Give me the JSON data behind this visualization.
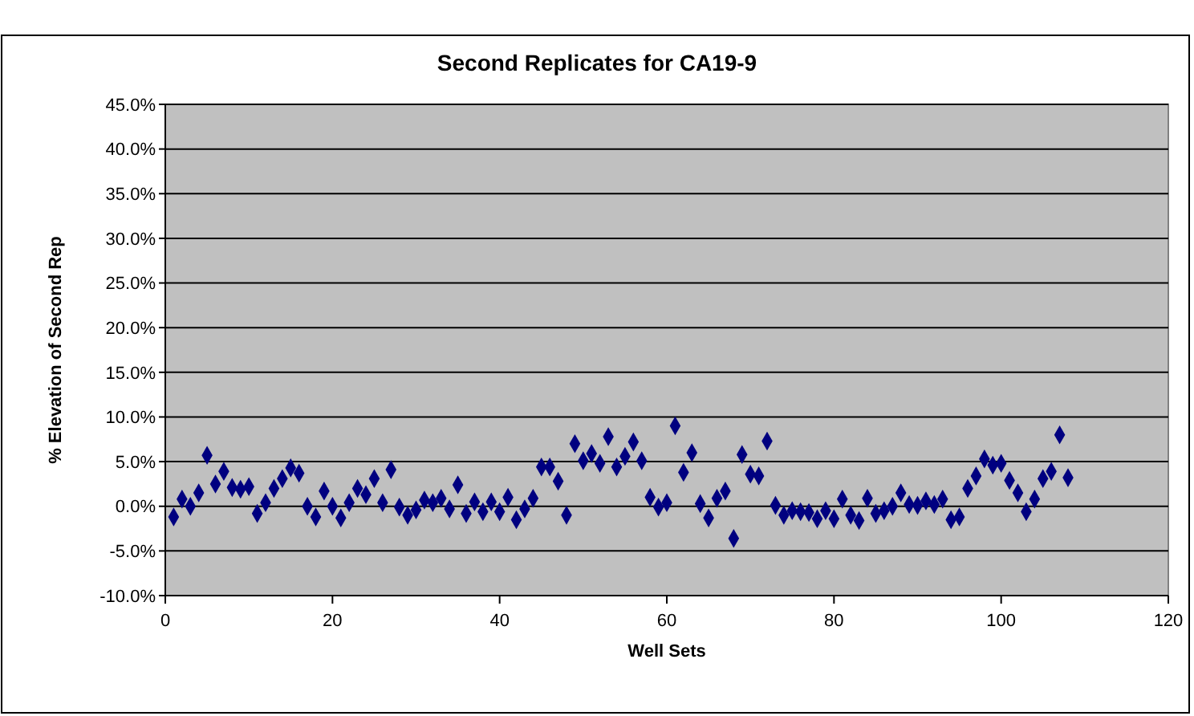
{
  "chart_data": {
    "type": "scatter",
    "title": "Second Replicates for CA19-9",
    "xlabel": "Well Sets",
    "ylabel": "% Elevation of Second Rep",
    "x": [
      1,
      2,
      3,
      4,
      5,
      6,
      7,
      8,
      9,
      10,
      11,
      12,
      13,
      14,
      15,
      16,
      17,
      18,
      19,
      20,
      21,
      22,
      23,
      24,
      25,
      26,
      27,
      28,
      29,
      30,
      31,
      32,
      33,
      34,
      35,
      36,
      37,
      38,
      39,
      40,
      41,
      42,
      43,
      44,
      45,
      46,
      47,
      48,
      49,
      50,
      51,
      52,
      53,
      54,
      55,
      56,
      57,
      58,
      59,
      60,
      61,
      62,
      63,
      64,
      65,
      66,
      67,
      68,
      69,
      70,
      71,
      72,
      73,
      74,
      75,
      76,
      77,
      78,
      79,
      80,
      81,
      82,
      83,
      84,
      85,
      86,
      87,
      88,
      89,
      90,
      91,
      92,
      93,
      94,
      95,
      96,
      97,
      98,
      99,
      100,
      101,
      102,
      103,
      104,
      105,
      106,
      107,
      108
    ],
    "series": [
      {
        "color": "#000080",
        "values": [
          -1.2,
          0.8,
          0,
          1.5,
          5.7,
          2.5,
          3.9,
          2.1,
          1.9,
          2.2,
          -0.8,
          0.4,
          2.0,
          3.1,
          4.3,
          3.7,
          0,
          -1.2,
          1.7,
          0,
          -1.3,
          0.4,
          2.0,
          1.3,
          3.1,
          0.4,
          4.1,
          -0.1,
          -1.0,
          -0.4,
          0.7,
          0.4,
          0.9,
          -0.3,
          2.4,
          -0.8,
          0.5,
          -0.6,
          0.5,
          -0.6,
          1.0,
          -1.5,
          -0.3,
          0.9,
          4.4,
          4.4,
          2.8,
          -1.0,
          7.0,
          5.1,
          5.9,
          4.8,
          7.8,
          4.4,
          5.6,
          7.2,
          5.1,
          1.0,
          -0.1,
          0.4,
          9.0,
          3.8,
          6.0,
          0.3,
          -1.3,
          0.9,
          1.7,
          -3.6,
          5.8,
          3.6,
          3.4,
          7.3,
          0.1,
          -1.0,
          -0.5,
          -0.6,
          -0.7,
          -1.4,
          -0.5,
          -1.4,
          0.8,
          -1.0,
          -1.6,
          0.9,
          -0.8,
          -0.5,
          0,
          1.5,
          0.2,
          0.1,
          0.6,
          0.2,
          0.8,
          -1.5,
          -1.2,
          2.0,
          3.4,
          5.3,
          4.6,
          4.8,
          2.9,
          1.5,
          -0.6,
          0.8,
          3.1,
          3.9,
          8.0,
          3.2
        ]
      }
    ],
    "xlim": [
      0,
      120
    ],
    "xticks": [
      0,
      20,
      40,
      60,
      80,
      100,
      120
    ],
    "ylim": [
      -10,
      45
    ],
    "yticks": [
      {
        "value": -10,
        "label": "-10.0%"
      },
      {
        "value": -5,
        "label": "-5.0%"
      },
      {
        "value": 0,
        "label": "0.0%"
      },
      {
        "value": 5,
        "label": "5.0%"
      },
      {
        "value": 10,
        "label": "10.0%"
      },
      {
        "value": 15,
        "label": "15.0%"
      },
      {
        "value": 20,
        "label": "20.0%"
      },
      {
        "value": 25,
        "label": "25.0%"
      },
      {
        "value": 30,
        "label": "30.0%"
      },
      {
        "value": 35,
        "label": "35.0%"
      },
      {
        "value": 40,
        "label": "40.0%"
      },
      {
        "value": 45,
        "label": "45.0%"
      }
    ],
    "grid": "y",
    "marker": "diamond"
  }
}
